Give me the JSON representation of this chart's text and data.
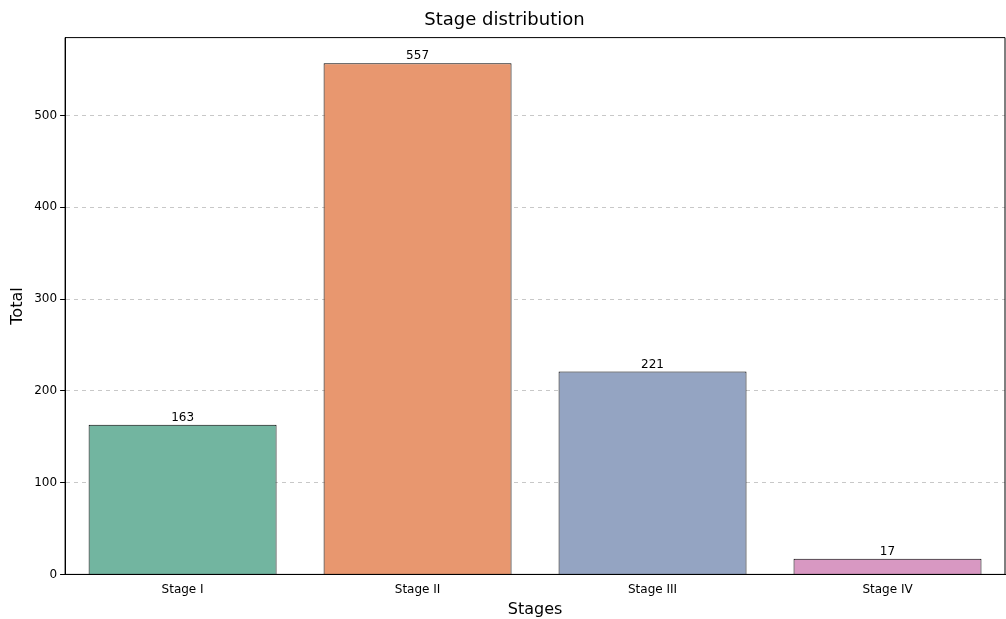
{
  "chart_data": {
    "type": "bar",
    "title": "Stage distribution",
    "xlabel": "Stages",
    "ylabel": "Total",
    "categories": [
      "Stage I",
      "Stage II",
      "Stage III",
      "Stage IV"
    ],
    "values": [
      163,
      557,
      221,
      17
    ],
    "colors": [
      "#72b5a0",
      "#e8976f",
      "#94a4c2",
      "#d898c2"
    ],
    "ylim": [
      0,
      585
    ],
    "yticks": [
      0,
      100,
      200,
      300,
      400,
      500
    ],
    "grid": "y",
    "data_labels": true
  }
}
